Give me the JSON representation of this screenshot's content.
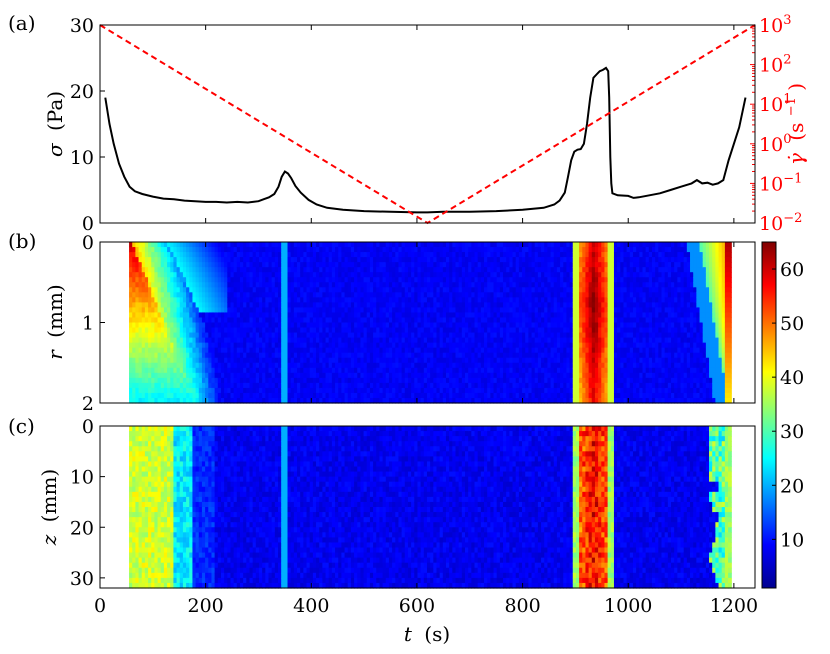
{
  "figure": {
    "panel_labels": [
      "(a)",
      "(b)",
      "(c)"
    ],
    "x_axis": {
      "label_var": "t",
      "label_unit": "(s)",
      "ticks": [
        0,
        200,
        400,
        600,
        800,
        1000,
        1200
      ],
      "range": [
        0,
        1240
      ]
    }
  },
  "chart_data": [
    {
      "panel": "(a)",
      "type": "line",
      "x_range": [
        0,
        1240
      ],
      "left_axis": {
        "label_var": "σ",
        "label_unit": "(Pa)",
        "ticks": [
          0,
          10,
          20,
          30
        ],
        "range": [
          0,
          30
        ]
      },
      "right_axis": {
        "label_var": "γ̇",
        "label_unit": "(s",
        "label_exp": "−1",
        "label_close": ")",
        "scale": "log",
        "range": [
          0.01,
          1000
        ],
        "tick_base": "10",
        "tick_exponents": [
          "−2",
          "−1",
          "0",
          "1",
          "2",
          "3"
        ],
        "color": "#ff0000"
      },
      "series": [
        {
          "axis": "left",
          "color": "#000000",
          "style": "solid",
          "x": [
            10,
            18,
            26,
            36,
            46,
            56,
            66,
            80,
            100,
            120,
            140,
            160,
            180,
            200,
            220,
            240,
            260,
            280,
            300,
            310,
            320,
            330,
            338,
            344,
            350,
            356,
            362,
            370,
            380,
            395,
            410,
            430,
            460,
            500,
            550,
            600,
            620,
            650,
            700,
            750,
            800,
            840,
            860,
            870,
            880,
            886,
            892,
            898,
            904,
            910,
            916,
            922,
            928,
            934,
            940,
            946,
            952,
            958,
            962,
            964,
            966,
            968,
            970,
            980,
            1000,
            1010,
            1020,
            1040,
            1060,
            1080,
            1100,
            1120,
            1130,
            1140,
            1150,
            1160,
            1170,
            1180,
            1190,
            1200,
            1210,
            1222
          ],
          "y": [
            19,
            15,
            12,
            9,
            7,
            5.5,
            4.8,
            4.4,
            4.0,
            3.7,
            3.6,
            3.4,
            3.3,
            3.2,
            3.2,
            3.1,
            3.2,
            3.1,
            3.3,
            3.6,
            3.9,
            4.4,
            5.5,
            7.0,
            7.8,
            7.5,
            6.8,
            5.6,
            4.6,
            3.5,
            2.8,
            2.3,
            2.0,
            1.8,
            1.7,
            1.6,
            1.6,
            1.7,
            1.7,
            1.8,
            2.0,
            2.3,
            2.8,
            3.4,
            4.6,
            7.0,
            9.5,
            10.8,
            11.1,
            11.2,
            12.0,
            15.0,
            19.0,
            22.0,
            22.5,
            23.0,
            23.2,
            23.5,
            23.0,
            19.0,
            10.0,
            6.0,
            4.5,
            4.2,
            4.1,
            3.8,
            3.9,
            4.2,
            4.5,
            5.0,
            5.5,
            6.0,
            6.5,
            6.0,
            6.1,
            5.8,
            6.0,
            6.5,
            9.5,
            12.0,
            14.5,
            19.0
          ]
        },
        {
          "axis": "right",
          "color": "#ff0000",
          "style": "dashed",
          "x": [
            0,
            620,
            1240
          ],
          "y": [
            1000,
            0.01,
            1000
          ]
        }
      ]
    },
    {
      "panel": "(b)",
      "type": "heatmap",
      "y_axis": {
        "label_var": "r",
        "label_unit": "(mm)",
        "ticks": [
          0,
          1,
          2
        ],
        "range": [
          0,
          2
        ],
        "inverted": true
      },
      "data_x_range": [
        55,
        1195
      ],
      "colorbar": {
        "min": 1,
        "max": 65,
        "ticks": [
          10,
          20,
          30,
          40,
          50,
          60
        ],
        "colormap": "jet"
      },
      "features": [
        {
          "kind": "start_wedge",
          "t_start": 55,
          "t_end": 240,
          "value_at_edge": 58
        },
        {
          "kind": "stripe",
          "t": 350,
          "value": 22
        },
        {
          "kind": "band",
          "t_start": 893,
          "t_end": 973,
          "peak_t": 935,
          "peak_value": 64
        },
        {
          "kind": "end_wedge",
          "t_start": 1110,
          "t_end": 1195,
          "value_at_edge": 62
        }
      ]
    },
    {
      "panel": "(c)",
      "type": "heatmap",
      "y_axis": {
        "label_var": "z",
        "label_unit": "(mm)",
        "ticks": [
          0,
          10,
          20,
          30
        ],
        "range": [
          0,
          32
        ],
        "inverted": true
      },
      "data_x_range": [
        55,
        1195
      ],
      "colorbar": "shared",
      "features": [
        {
          "kind": "band",
          "t_start": 55,
          "t_end": 140,
          "value": 36
        },
        {
          "kind": "band",
          "t_start": 140,
          "t_end": 175,
          "value": 24
        },
        {
          "kind": "stripe",
          "t": 350,
          "value": 20
        },
        {
          "kind": "band",
          "t_start": 893,
          "t_end": 973,
          "peak_t": 935,
          "peak_value": 60
        },
        {
          "kind": "band",
          "t_start": 1135,
          "t_end": 1195,
          "value": 33
        }
      ]
    }
  ]
}
